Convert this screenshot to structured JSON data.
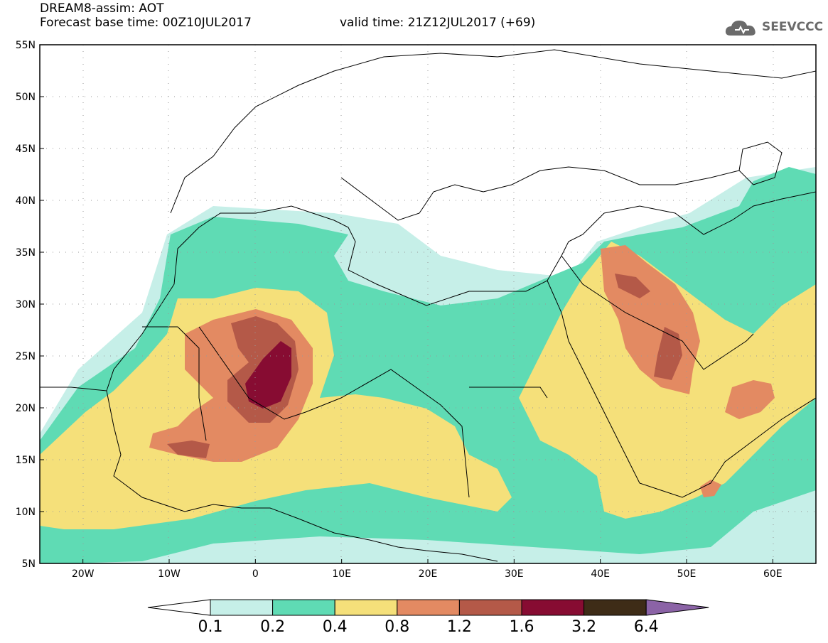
{
  "header": {
    "line1": "DREAM8-assim: AOT",
    "line2_left": "Forecast base time: 00Z10JUL2017",
    "line2_right": "valid time: 21Z12JUL2017 (+69)"
  },
  "logo": {
    "text": "SEEVCCC",
    "icon": "cloud-icon"
  },
  "map": {
    "lat_labels": [
      "55N",
      "50N",
      "45N",
      "40N",
      "35N",
      "30N",
      "25N",
      "20N",
      "15N",
      "10N",
      "5N"
    ],
    "lon_labels": [
      "20W",
      "10W",
      "0",
      "10E",
      "20E",
      "30E",
      "40E",
      "50E",
      "60E"
    ],
    "lat_range": [
      5,
      55
    ],
    "lon_range": [
      -25,
      65
    ],
    "grid": "dotted"
  },
  "colorbar": {
    "labels": [
      "0.1",
      "0.2",
      "0.4",
      "0.8",
      "1.2",
      "1.6",
      "3.2",
      "6.4"
    ],
    "colors": [
      "#ffffff",
      "#c6efe8",
      "#5fdbb4",
      "#f5e07a",
      "#e38a62",
      "#b45948",
      "#870c32",
      "#3e2c17",
      "#8b63a6"
    ]
  }
}
